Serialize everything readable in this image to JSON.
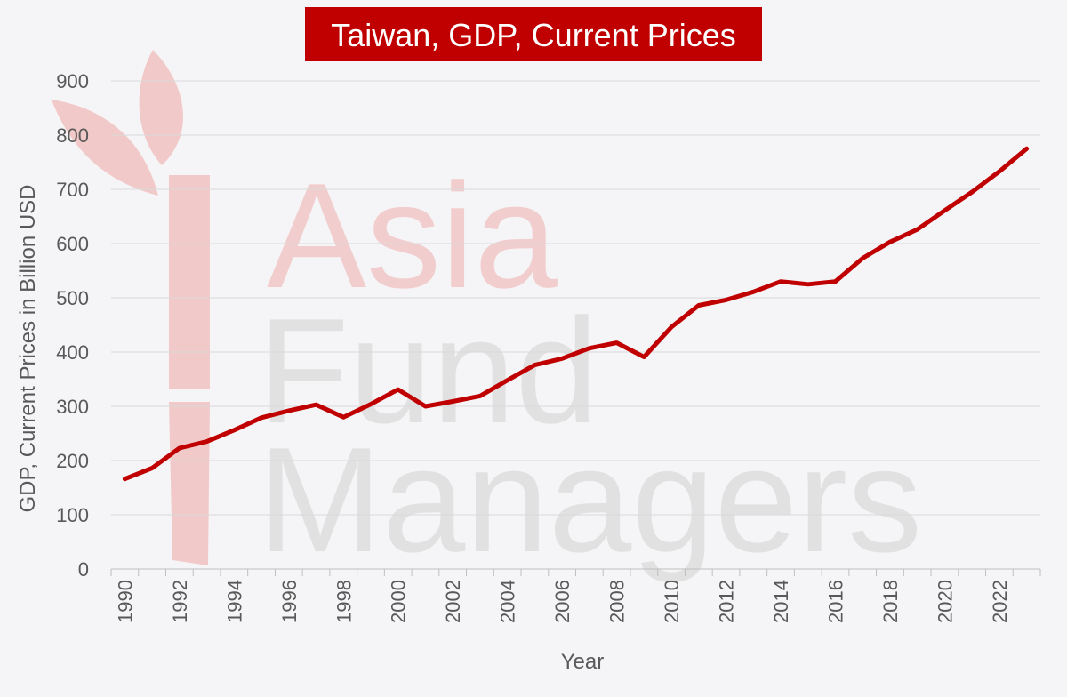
{
  "colors": {
    "background": "#f5f4f6",
    "title_bg": "#c00000",
    "title_text": "#ffffff",
    "line": "#c00000",
    "grid": "#d9d9d9",
    "axis_text": "#595959",
    "watermark_red": "#f2c9c9",
    "watermark_gray": "#e0e0e0"
  },
  "watermark": {
    "line1": "Asia",
    "line2": "Fund",
    "line3": "Managers",
    "icon": "bamboo-leaf-icon"
  },
  "chart_data": {
    "type": "line",
    "title": "Taiwan, GDP, Current Prices",
    "xlabel": "Year",
    "ylabel": "GDP, Current Prices in Billion USD",
    "ylim": [
      0,
      900
    ],
    "yticks": [
      0,
      100,
      200,
      300,
      400,
      500,
      600,
      700,
      800,
      900
    ],
    "xlim": [
      1990,
      2023
    ],
    "xticks": [
      1990,
      1992,
      1994,
      1996,
      1998,
      2000,
      2002,
      2004,
      2006,
      2008,
      2010,
      2012,
      2014,
      2016,
      2018,
      2020,
      2022
    ],
    "grid": true,
    "legend": "none",
    "series": [
      {
        "x": [
          1990,
          1991,
          1992,
          1993,
          1994,
          1995,
          1996,
          1997,
          1998,
          1999,
          2000,
          2001,
          2002,
          2003,
          2004,
          2005,
          2006,
          2007,
          2008,
          2009,
          2010,
          2011,
          2012,
          2013,
          2014,
          2015,
          2016,
          2017,
          2018,
          2019,
          2020,
          2021,
          2022,
          2023
        ],
        "values": [
          166,
          186,
          223,
          235,
          256,
          279,
          292,
          303,
          280,
          304,
          331,
          300,
          309,
          319,
          348,
          376,
          388,
          407,
          417,
          391,
          446,
          486,
          496,
          511,
          530,
          525,
          530,
          573,
          603,
          626,
          661,
          695,
          733,
          775
        ]
      }
    ]
  }
}
